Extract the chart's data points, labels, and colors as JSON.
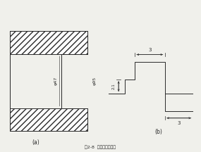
{
  "title": "图2-8  槽面螺纹截面图",
  "label_a": "(a)",
  "label_b": "(b)",
  "dim_phi47": "φ47",
  "dim_phi95": "φ95",
  "dim_3_top": "3",
  "dim_3_bot": "3",
  "dim_21": "2.1",
  "bg_color": "#f0f0eb",
  "line_color": "#2a2a2a",
  "fig_width": 2.85,
  "fig_height": 2.16,
  "dpi": 100
}
